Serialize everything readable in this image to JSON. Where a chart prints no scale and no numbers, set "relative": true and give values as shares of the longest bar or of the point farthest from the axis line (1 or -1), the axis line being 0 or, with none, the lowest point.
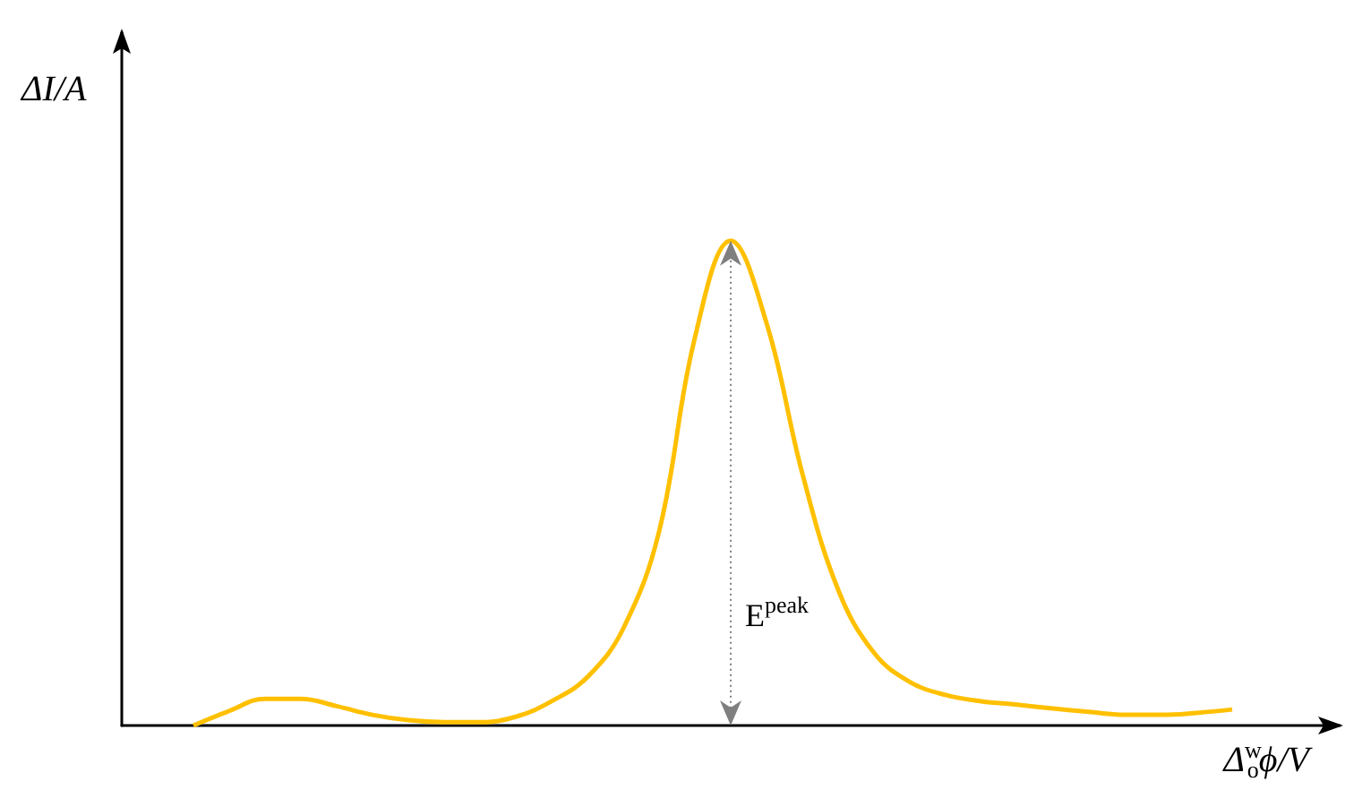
{
  "chart_data": {
    "type": "line",
    "relative": true,
    "ylabel": "ΔI/A",
    "xlabel": "Δ$^{w}$$_{o}$ϕ/V",
    "categories": [
      null,
      null,
      null,
      null,
      null,
      null,
      null,
      null,
      null,
      null,
      null,
      null,
      null,
      null,
      null,
      null,
      null,
      null,
      null,
      null,
      null,
      null,
      null,
      null,
      null,
      null,
      null,
      null,
      null,
      null,
      null,
      null,
      null,
      null,
      null
    ],
    "series": [
      {
        "color": "#ffc000",
        "values": [
          null,
          null,
          0.0,
          0.03,
          0.055,
          0.055,
          0.04,
          0.022,
          0.011,
          0.007,
          0.007,
          0.018,
          0.05,
          0.1,
          0.2,
          0.4,
          0.8,
          1,
          0.83,
          0.52,
          0.28,
          0.15,
          0.09,
          0.063,
          0.05,
          0.043,
          0.035,
          0.028,
          0.022,
          0.022,
          0.026,
          0.033,
          null,
          null,
          null
        ]
      }
    ],
    "annotations": [
      "E$^{peak}$"
    ],
    "marker": "none",
    "grid": false
  }
}
